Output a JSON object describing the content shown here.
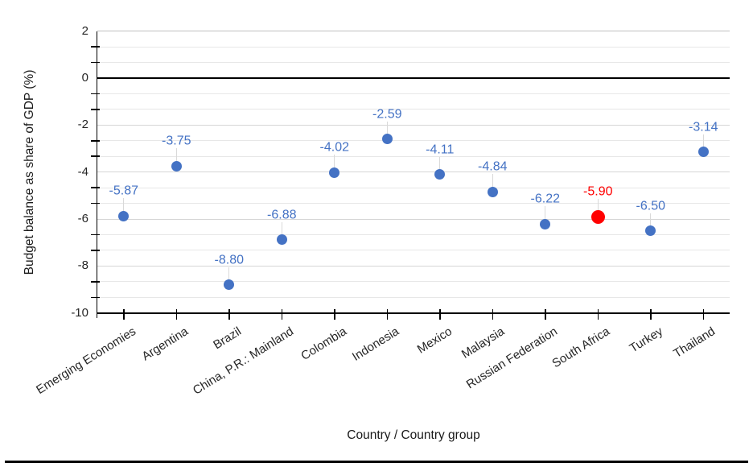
{
  "chart_data": {
    "type": "scatter",
    "title": "",
    "xlabel": "Country / Country group",
    "ylabel": "Budget balance as share of GDP (%)",
    "categories": [
      "Emerging Economies",
      "Argentina",
      "Brazil",
      "China, P.R.: Mainland",
      "Colombia",
      "Indonesia",
      "Mexico",
      "Malaysia",
      "Russian Federation",
      "South Africa",
      "Turkey",
      "Thailand"
    ],
    "values": [
      -5.87,
      -3.75,
      -8.8,
      -6.88,
      -4.02,
      -2.59,
      -4.11,
      -4.84,
      -6.22,
      -5.9,
      -6.5,
      -3.14
    ],
    "point_labels": [
      "-5.87",
      "-3.75",
      "-8.80",
      "-6.88",
      "-4.02",
      "-2.59",
      "-4.11",
      "-4.84",
      "-6.22",
      "-5.90",
      "-6.50",
      "-3.14"
    ],
    "highlight_index": 9,
    "highlight_category": "South Africa",
    "ylim": [
      -10,
      2
    ],
    "y_major_ticks": [
      2,
      0,
      -2,
      -4,
      -6,
      -8,
      -10
    ],
    "y_tick_labels": [
      "2",
      "0",
      "-2",
      "-4",
      "-6",
      "-8",
      "-10"
    ],
    "y_minor_step": 0.6666667,
    "grid": "horizontal",
    "legend": "none",
    "zero_line": true,
    "colors": {
      "point": "#4472C4",
      "point_label": "#4472C4",
      "highlight_point": "#FF0000",
      "highlight_label": "#FF0000",
      "minor_gridline": "#E7E7E7",
      "major_gridline": "#D6D6D6",
      "top_gridline": "#BFBFBF",
      "axis": "#000000",
      "tick_label": "#262626",
      "leader_line": "#D9D9D9"
    }
  }
}
